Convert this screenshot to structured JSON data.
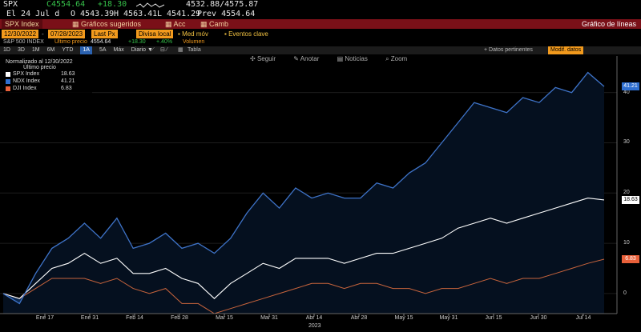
{
  "header": {
    "ticker": "SPX",
    "last": "C4554.64",
    "change": "+18.30",
    "range": "4532.88/4575.87",
    "line2": "El 24 Jul d",
    "open": "O 4543.39",
    "high": "H 4563.41",
    "low": "L 4541.29",
    "prev": "Prev 4554.64"
  },
  "menubar": {
    "index": "SPX Index",
    "suggested": "Gráficos sugeridos",
    "actions": "Acc",
    "change": "Camb",
    "chart_type": "Gráfico de líneas"
  },
  "controls": {
    "date_from": "12/30/2022",
    "date_to": "07/28/2023",
    "last_px": "Last Px",
    "currency": "Divisa local",
    "avg": "Med móv",
    "events": "Eventos clave"
  },
  "subinfo": {
    "index_name": "S&P 500 INDEX",
    "last_price": "Último precio",
    "last_value": "4554.64",
    "chg": "+18.30",
    "pct": "+.40%",
    "volume": "Volumen"
  },
  "periods": [
    "1D",
    "3D",
    "1M",
    "6M",
    "YTD",
    "1A",
    "5A",
    "Máx",
    "Diario ▼"
  ],
  "active_period": "1A",
  "toolbar_right": {
    "relevant": "Datos pertinentes",
    "edit": "Modif. datos",
    "table": "Tabla"
  },
  "overlay_tools": [
    "Seguir",
    "Anotar",
    "Noticias",
    "Zoom"
  ],
  "legend": {
    "title": "Normalizado al 12/30/2022",
    "subtitle": "Último precio",
    "items": [
      {
        "name": "SPX Index",
        "value": "18.63",
        "color": "#ffffff"
      },
      {
        "name": "NDX Index",
        "value": "41.21",
        "color": "#2f6fd0"
      },
      {
        "name": "DJI Index",
        "value": "6.83",
        "color": "#e8603a"
      }
    ]
  },
  "colors": {
    "accent_red": "#7a1018",
    "ndx_line": "#3e73c8",
    "spx_fill": "#0d2a52",
    "spx_line": "#ffffff",
    "dji_line": "#c8643c"
  },
  "chart_data": {
    "type": "line",
    "xlabel": "2023",
    "x_ticks": [
      "Ene 17",
      "Ene 31",
      "Feb 14",
      "Feb 28",
      "Mar 15",
      "Mar 31",
      "Abr 14",
      "Abr 28",
      "May 15",
      "May 31",
      "Jun 15",
      "Jun 30",
      "Jul 14"
    ],
    "y_ticks": [
      0,
      10,
      20,
      30,
      40
    ],
    "ylim": [
      -4,
      46
    ],
    "series": [
      {
        "name": "NDX Index",
        "last": 41.21,
        "values": [
          0,
          -2,
          4,
          9,
          11,
          14,
          11,
          15,
          9,
          10,
          12,
          9,
          10,
          8,
          11,
          16,
          20,
          17,
          21,
          19,
          20,
          19,
          19,
          22,
          21,
          24,
          26,
          30,
          34,
          38,
          37,
          36,
          39,
          38,
          41,
          40,
          44,
          41.21
        ]
      },
      {
        "name": "SPX Index",
        "last": 18.63,
        "values": [
          0,
          -1,
          2,
          5,
          6,
          8,
          6,
          7,
          4,
          4,
          5,
          3,
          2,
          -1,
          2,
          4,
          6,
          5,
          7,
          7,
          7,
          6,
          7,
          8,
          8,
          9,
          10,
          11,
          13,
          14,
          15,
          14,
          15,
          16,
          17,
          18,
          19,
          18.63
        ]
      },
      {
        "name": "DJI Index",
        "last": 6.83,
        "values": [
          0,
          -1,
          1,
          3,
          3,
          3,
          2,
          3,
          1,
          0,
          1,
          -2,
          -2,
          -4,
          -3,
          -2,
          -1,
          0,
          1,
          2,
          2,
          1,
          2,
          2,
          1,
          1,
          0,
          1,
          1,
          2,
          3,
          2,
          3,
          3,
          4,
          5,
          6,
          6.83
        ]
      }
    ]
  }
}
